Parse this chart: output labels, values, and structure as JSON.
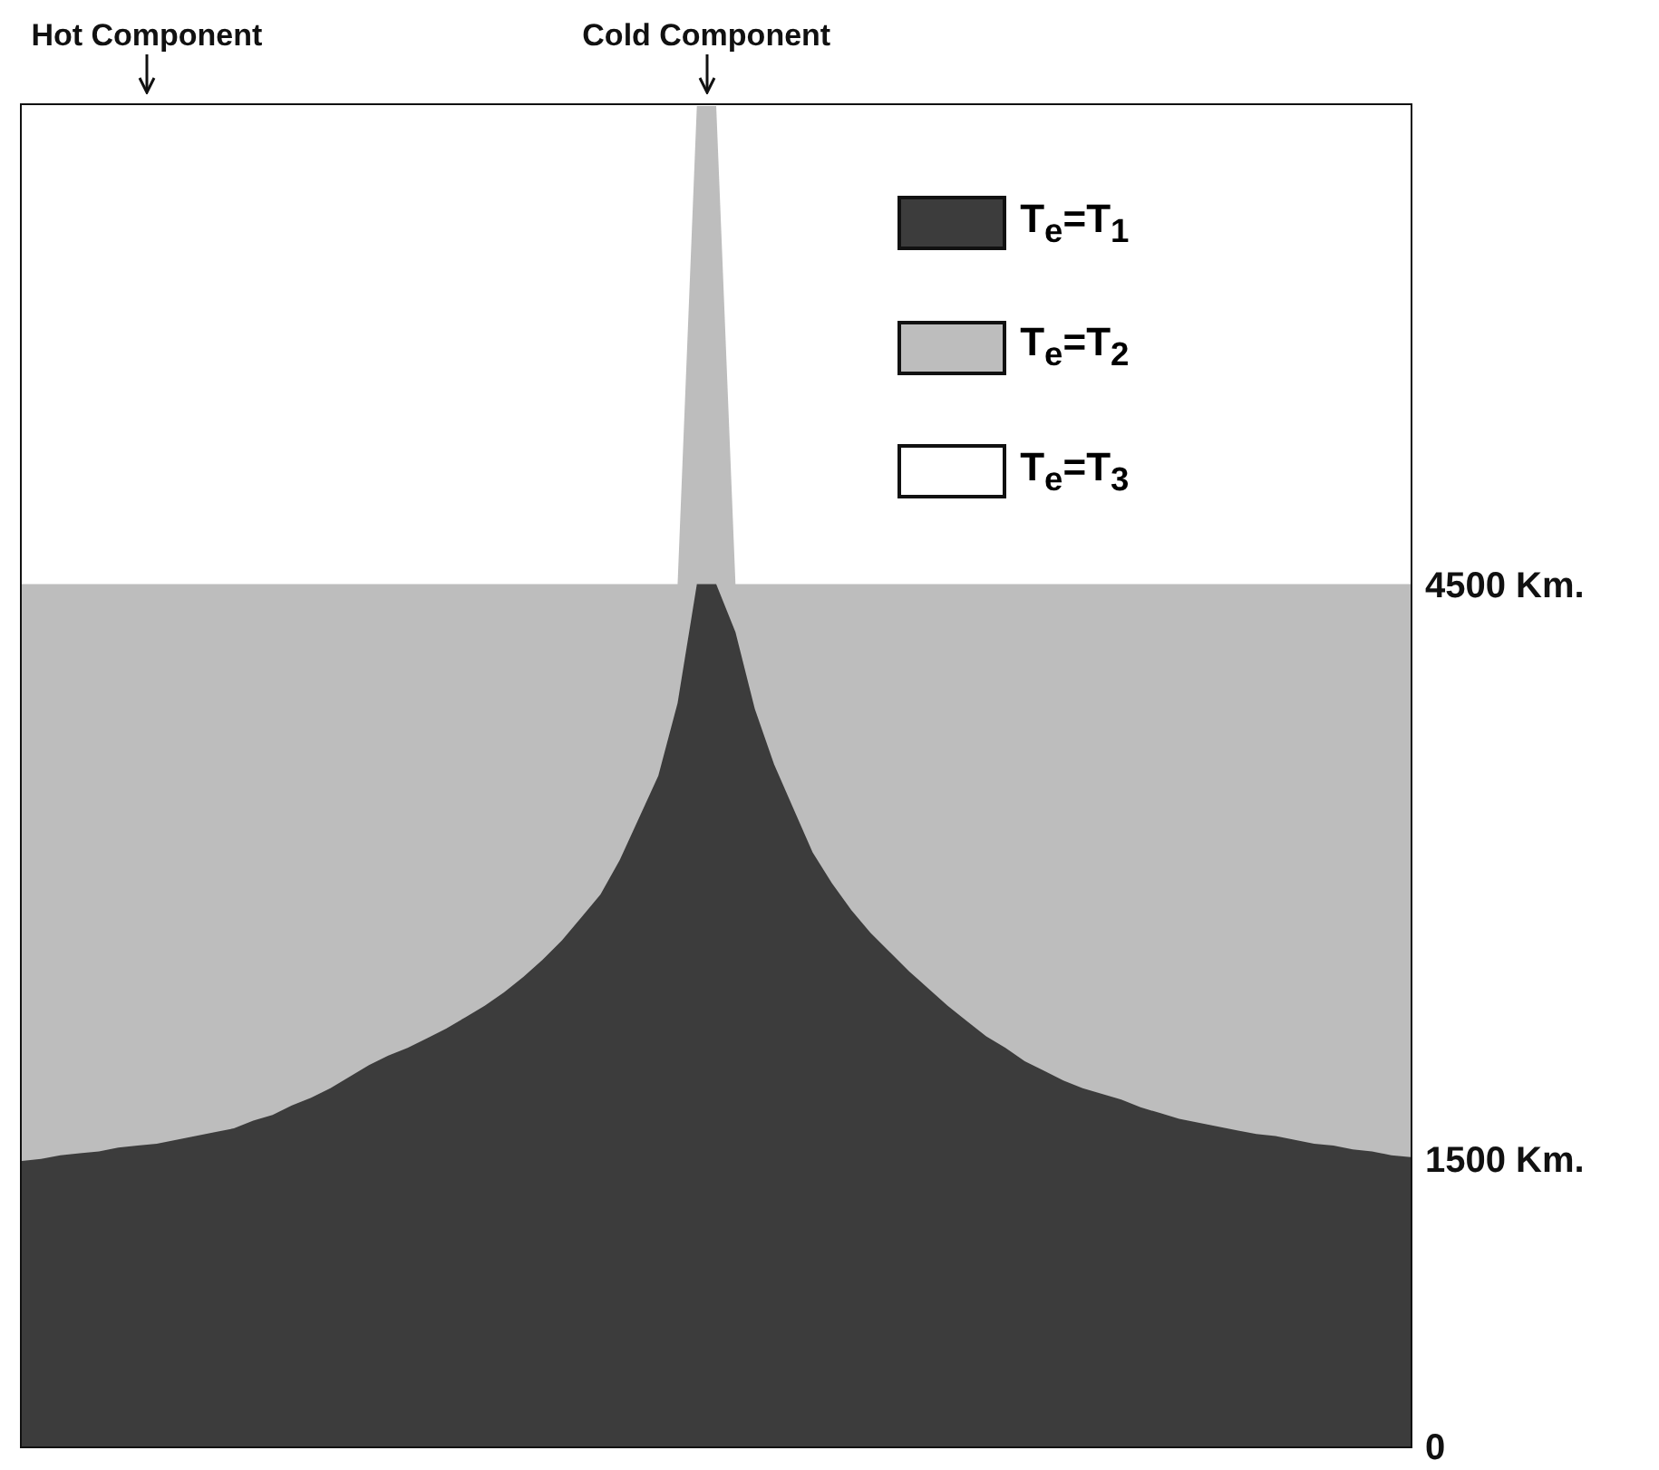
{
  "chart_data": {
    "type": "area",
    "stacked": true,
    "categories": [
      null,
      null,
      null,
      null,
      null,
      null,
      null,
      null,
      null,
      null,
      null,
      null,
      null,
      null,
      null,
      null,
      null,
      null,
      null,
      null,
      null,
      null,
      null,
      null,
      null,
      null,
      null,
      null,
      null,
      null,
      null,
      null,
      null,
      null,
      null,
      null,
      null,
      null,
      null,
      null,
      null,
      null,
      null,
      null,
      null,
      null,
      null,
      null,
      null,
      null,
      null,
      null,
      null,
      null,
      null,
      null,
      null,
      null,
      null,
      null,
      null,
      null,
      null,
      null,
      null,
      null,
      null,
      null,
      null,
      null,
      null,
      null,
      null
    ],
    "series": [
      {
        "name": "T$_{e}$=T$_{1}$",
        "color": "#3c3c3c",
        "values": [
          1490,
          1500,
          1520,
          1530,
          1540,
          1560,
          1570,
          1580,
          1600,
          1620,
          1640,
          1660,
          1700,
          1730,
          1780,
          1820,
          1870,
          1930,
          1990,
          2040,
          2080,
          2130,
          2180,
          2240,
          2300,
          2370,
          2450,
          2540,
          2640,
          2760,
          2880,
          3060,
          3280,
          3500,
          3880,
          4500,
          4500,
          4250,
          3850,
          3560,
          3330,
          3100,
          2940,
          2800,
          2680,
          2580,
          2480,
          2390,
          2300,
          2220,
          2140,
          2080,
          2010,
          1960,
          1910,
          1870,
          1840,
          1810,
          1770,
          1740,
          1710,
          1690,
          1670,
          1650,
          1630,
          1620,
          1600,
          1580,
          1570,
          1550,
          1540,
          1520,
          1510
        ]
      },
      {
        "name": "T$_{e}$=T$_{2}$",
        "color": "#bdbdbd",
        "values": [
          3010,
          3000,
          2980,
          2970,
          2960,
          2940,
          2930,
          2920,
          2900,
          2880,
          2860,
          2840,
          2800,
          2770,
          2720,
          2680,
          2630,
          2570,
          2510,
          2460,
          2420,
          2370,
          2320,
          2260,
          2200,
          2130,
          2050,
          1960,
          1860,
          1740,
          1620,
          1440,
          1220,
          1000,
          620,
          2500,
          2500,
          250,
          650,
          940,
          1170,
          1400,
          1560,
          1700,
          1820,
          1920,
          2020,
          2110,
          2200,
          2280,
          2360,
          2420,
          2490,
          2540,
          2590,
          2630,
          2660,
          2690,
          2730,
          2760,
          2790,
          2810,
          2830,
          2850,
          2870,
          2880,
          2900,
          2920,
          2930,
          2950,
          2960,
          2980,
          2990
        ]
      },
      {
        "name": "T$_{e}$=T$_{3}$",
        "color": "#ffffff",
        "values": [
          2500,
          2500,
          2500,
          2500,
          2500,
          2500,
          2500,
          2500,
          2500,
          2500,
          2500,
          2500,
          2500,
          2500,
          2500,
          2500,
          2500,
          2500,
          2500,
          2500,
          2500,
          2500,
          2500,
          2500,
          2500,
          2500,
          2500,
          2500,
          2500,
          2500,
          2500,
          2500,
          2500,
          2500,
          2500,
          0,
          0,
          2500,
          2500,
          2500,
          2500,
          2500,
          2500,
          2500,
          2500,
          2500,
          2500,
          2500,
          2500,
          2500,
          2500,
          2500,
          2500,
          2500,
          2500,
          2500,
          2500,
          2500,
          2500,
          2500,
          2500,
          2500,
          2500,
          2500,
          2500,
          2500,
          2500,
          2500,
          2500,
          2500,
          2500,
          2500,
          2500
        ]
      }
    ],
    "ylim": [
      0,
      7000
    ],
    "yticks": [
      {
        "value": 4500,
        "label": "4500 Km."
      },
      {
        "value": 1500,
        "label": "1500 Km."
      },
      0
    ],
    "tick_labels": "y",
    "legend": "top right",
    "annotations": [
      "Hot Component",
      "Cold Component"
    ]
  }
}
